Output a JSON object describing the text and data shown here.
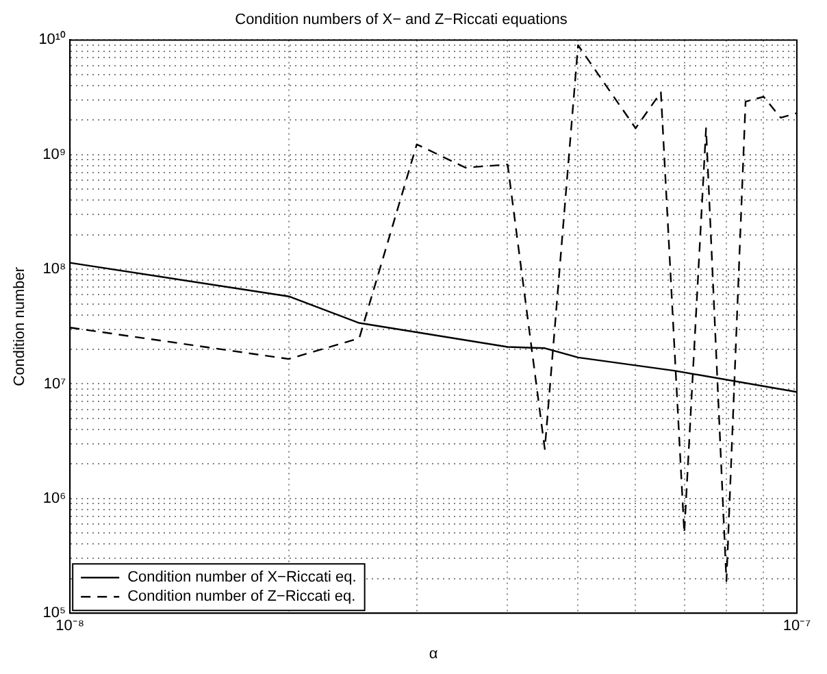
{
  "chart_data": {
    "type": "line",
    "title": "Condition numbers of X− and Z−Riccati equations",
    "xlabel": "α",
    "ylabel": "Condition number",
    "log": "xy",
    "grid": true,
    "legend": "bottom left",
    "marker": "none",
    "xlim": [
      1e-08,
      1e-07
    ],
    "xticks": [
      {
        "value": 1e-08,
        "label": "10⁻⁸"
      },
      {
        "value": 2e-08,
        "label": null
      },
      {
        "value": 3e-08,
        "label": null
      },
      {
        "value": 4e-08,
        "label": null
      },
      {
        "value": 5e-08,
        "label": null
      },
      {
        "value": 6e-08,
        "label": null
      },
      {
        "value": 7e-08,
        "label": null
      },
      {
        "value": 8e-08,
        "label": null
      },
      {
        "value": 9e-08,
        "label": null
      },
      {
        "value": 1e-07,
        "label": "10⁻⁷"
      }
    ],
    "ylim": [
      100000.0,
      10000000000.0
    ],
    "yticks": [
      {
        "value": 100000.0,
        "label": "10⁵"
      },
      {
        "value": 200000.0,
        "label": null
      },
      {
        "value": 300000.0,
        "label": null
      },
      {
        "value": 400000.0,
        "label": null
      },
      {
        "value": 500000.0,
        "label": null
      },
      {
        "value": 600000.0,
        "label": null
      },
      {
        "value": 700000.0,
        "label": null
      },
      {
        "value": 800000.0,
        "label": null
      },
      {
        "value": 900000.0,
        "label": null
      },
      {
        "value": 1000000.0,
        "label": "10⁶"
      },
      {
        "value": 2000000.0,
        "label": null
      },
      {
        "value": 3000000.0,
        "label": null
      },
      {
        "value": 4000000.0,
        "label": null
      },
      {
        "value": 5000000.0,
        "label": null
      },
      {
        "value": 6000000.0,
        "label": null
      },
      {
        "value": 7000000.0,
        "label": null
      },
      {
        "value": 8000000.0,
        "label": null
      },
      {
        "value": 9000000.0,
        "label": null
      },
      {
        "value": 10000000.0,
        "label": "10⁷"
      },
      {
        "value": 20000000.0,
        "label": null
      },
      {
        "value": 30000000.0,
        "label": null
      },
      {
        "value": 40000000.0,
        "label": null
      },
      {
        "value": 50000000.0,
        "label": null
      },
      {
        "value": 60000000.0,
        "label": null
      },
      {
        "value": 70000000.0,
        "label": null
      },
      {
        "value": 80000000.0,
        "label": null
      },
      {
        "value": 90000000.0,
        "label": null
      },
      {
        "value": 100000000.0,
        "label": "10⁸"
      },
      {
        "value": 200000000.0,
        "label": null
      },
      {
        "value": 300000000.0,
        "label": null
      },
      {
        "value": 400000000.0,
        "label": null
      },
      {
        "value": 500000000.0,
        "label": null
      },
      {
        "value": 600000000.0,
        "label": null
      },
      {
        "value": 700000000.0,
        "label": null
      },
      {
        "value": 800000000.0,
        "label": null
      },
      {
        "value": 900000000.0,
        "label": null
      },
      {
        "value": 1000000000.0,
        "label": "10⁹"
      },
      {
        "value": 2000000000.0,
        "label": null
      },
      {
        "value": 3000000000.0,
        "label": null
      },
      {
        "value": 4000000000.0,
        "label": null
      },
      {
        "value": 5000000000.0,
        "label": null
      },
      {
        "value": 6000000000.0,
        "label": null
      },
      {
        "value": 7000000000.0,
        "label": null
      },
      {
        "value": 8000000000.0,
        "label": null
      },
      {
        "value": 9000000000.0,
        "label": null
      },
      {
        "value": 10000000000.0,
        "label": "10¹⁰"
      }
    ],
    "series": [
      {
        "name": "Condition number of X−Riccati eq.",
        "color": "#000000",
        "line_style": "solid",
        "x": [
          1e-08,
          2e-08,
          2.5e-08,
          4e-08,
          4.5e-08,
          5e-08,
          6.8e-08,
          1e-07
        ],
        "values": [
          114000000.0,
          58000000.0,
          34000000.0,
          21000000.0,
          20500000.0,
          17000000.0,
          13000000.0,
          8500000.0
        ]
      },
      {
        "name": "Condition number of Z−Riccati eq.",
        "color": "#000000",
        "line_style": "dashed",
        "x": [
          1e-08,
          2e-08,
          2.5e-08,
          3e-08,
          3.5e-08,
          4e-08,
          4.5e-08,
          5e-08,
          6e-08,
          6.5e-08,
          7e-08,
          7.5e-08,
          8e-08,
          8.5e-08,
          9e-08,
          9.5e-08,
          1e-07
        ],
        "values": [
          31000000.0,
          16500000.0,
          25000000.0,
          1230000000.0,
          770000000.0,
          820000000.0,
          2700000.0,
          9000000000.0,
          1700000000.0,
          3500000000.0,
          500000.0,
          1700000000.0,
          190000.0,
          2900000000.0,
          3200000000.0,
          2100000000.0,
          2300000000.0
        ]
      }
    ]
  }
}
